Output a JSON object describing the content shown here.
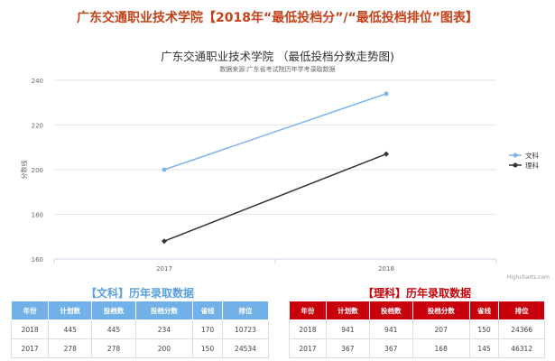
{
  "page_title": "广东交通职业技术学院【2018年“最低投档分”/“最低投档排位”图表】",
  "chart_data": {
    "type": "line",
    "title": "广东交通职业技术学院 （最低投档分数走势图)",
    "subtitle": "数据来源:广东省考试院历年学考录取数据",
    "ylabel": "分数线",
    "xlabel": "",
    "x": [
      "2017",
      "2018"
    ],
    "ylim": [
      160,
      240
    ],
    "yticks": [
      160,
      180,
      200,
      220,
      240
    ],
    "grid": true,
    "legend": "right",
    "series": [
      {
        "name": "文科",
        "values": [
          200,
          234
        ],
        "color": "#7cb5ec"
      },
      {
        "name": "理科",
        "values": [
          168,
          207
        ],
        "color": "#333333"
      }
    ],
    "credit": "Highcharts.com"
  },
  "tables": {
    "wenke": {
      "title": "【文科】历年录取数据",
      "headers": [
        "年份",
        "计划数",
        "投档数",
        "投档分数",
        "省线",
        "排位"
      ],
      "rows": [
        [
          "2018",
          "445",
          "445",
          "234",
          "170",
          "10723"
        ],
        [
          "2017",
          "278",
          "278",
          "200",
          "150",
          "24534"
        ]
      ]
    },
    "like": {
      "title": "【理科】历年录取数据",
      "headers": [
        "年份",
        "计划数",
        "投档数",
        "投档分数",
        "省线",
        "排位"
      ],
      "rows": [
        [
          "2018",
          "941",
          "941",
          "207",
          "150",
          "24366"
        ],
        [
          "2017",
          "367",
          "367",
          "168",
          "145",
          "46312"
        ]
      ]
    }
  }
}
